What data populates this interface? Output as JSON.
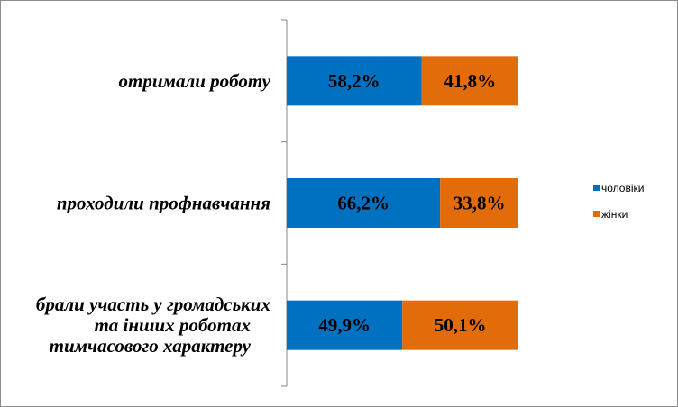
{
  "chart_data": {
    "type": "bar",
    "orientation": "horizontal",
    "stacked": "percent",
    "categories": [
      [
        "отримали роботу"
      ],
      [
        "проходили профнавчання"
      ],
      [
        "брали участь у громадських",
        "та інших роботах",
        "тимчасового характеру"
      ]
    ],
    "series": [
      {
        "name": "чоловіки",
        "color": "#0070C0",
        "values": [
          58.2,
          66.2,
          49.9
        ],
        "labels": [
          "58,2%",
          "66,2%",
          "49,9%"
        ]
      },
      {
        "name": "жінки",
        "color": "#E36C0A",
        "values": [
          41.8,
          33.8,
          50.1
        ],
        "labels": [
          "41,8%",
          "33,8%",
          "50,1%"
        ]
      }
    ],
    "xlim": [
      0,
      100
    ],
    "grid": false,
    "legend_position": "right"
  }
}
